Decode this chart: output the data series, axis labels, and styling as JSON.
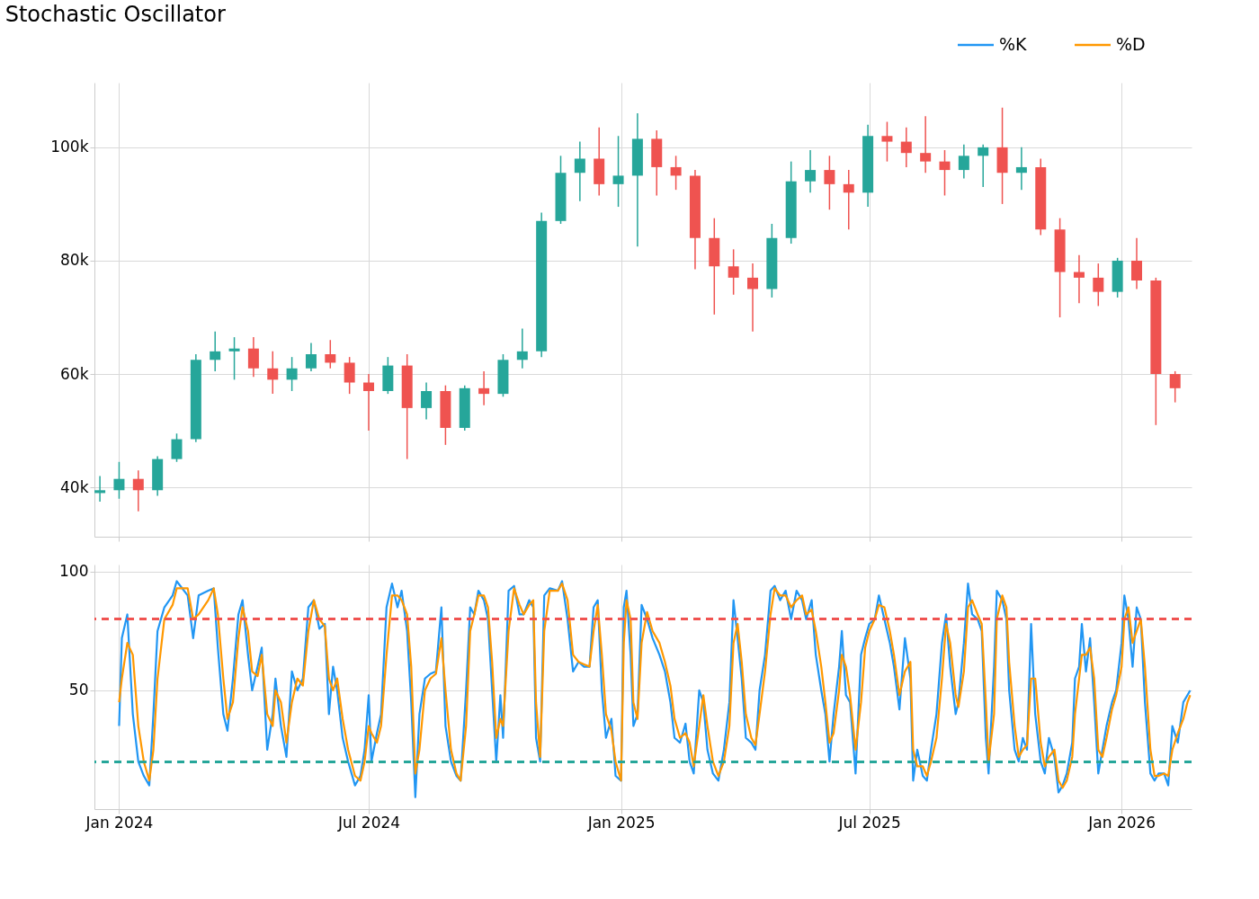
{
  "chart_data": [
    {
      "type": "candlestick",
      "title": "Stochastic Oscillator",
      "x": [
        "2023-12-18",
        "2024-01-01",
        "2024-01-15",
        "2024-01-29",
        "2024-02-12",
        "2024-02-26",
        "2024-03-11",
        "2024-03-25",
        "2024-04-08",
        "2024-04-22",
        "2024-05-06",
        "2024-05-20",
        "2024-06-03",
        "2024-06-17",
        "2024-07-01",
        "2024-07-15",
        "2024-07-29",
        "2024-08-12",
        "2024-08-26",
        "2024-09-09",
        "2024-09-23",
        "2024-10-07",
        "2024-10-21",
        "2024-11-04",
        "2024-11-18",
        "2024-12-02",
        "2024-12-16",
        "2024-12-30",
        "2025-01-13",
        "2025-01-27",
        "2025-02-10",
        "2025-02-24",
        "2025-03-10",
        "2025-03-24",
        "2025-04-07",
        "2025-04-21",
        "2025-05-05",
        "2025-05-19",
        "2025-06-02",
        "2025-06-16",
        "2025-06-30",
        "2025-07-14",
        "2025-07-28",
        "2025-08-11",
        "2025-08-25",
        "2025-09-08",
        "2025-09-22",
        "2025-10-06",
        "2025-10-20",
        "2025-11-03",
        "2025-11-17",
        "2025-12-01",
        "2025-12-15",
        "2025-12-29",
        "2026-01-12",
        "2026-01-26",
        "2026-02-09"
      ],
      "ohlc": [
        [
          39000,
          42000,
          37500,
          39500
        ],
        [
          39500,
          44500,
          38000,
          41500
        ],
        [
          41500,
          43000,
          35800,
          39500
        ],
        [
          39500,
          45500,
          38500,
          45000
        ],
        [
          45000,
          49500,
          44500,
          48500
        ],
        [
          48500,
          63500,
          48000,
          62500
        ],
        [
          62500,
          67500,
          60500,
          64000
        ],
        [
          64000,
          66500,
          59000,
          64500
        ],
        [
          64500,
          66500,
          59500,
          61000
        ],
        [
          61000,
          64000,
          56500,
          59000
        ],
        [
          59000,
          63000,
          57000,
          61000
        ],
        [
          61000,
          65500,
          60500,
          63500
        ],
        [
          63500,
          66000,
          61000,
          62000
        ],
        [
          62000,
          63000,
          56500,
          58500
        ],
        [
          58500,
          60000,
          50000,
          57000
        ],
        [
          57000,
          63000,
          56500,
          61500
        ],
        [
          61500,
          63500,
          45000,
          54000
        ],
        [
          54000,
          58500,
          52000,
          57000
        ],
        [
          57000,
          58000,
          47500,
          50500
        ],
        [
          50500,
          58000,
          50000,
          57500
        ],
        [
          57500,
          60500,
          54500,
          56500
        ],
        [
          56500,
          63500,
          56000,
          62500
        ],
        [
          62500,
          68000,
          61000,
          64000
        ],
        [
          64000,
          88500,
          63000,
          87000
        ],
        [
          87000,
          98500,
          86500,
          95500
        ],
        [
          95500,
          101000,
          90500,
          98000
        ],
        [
          98000,
          103500,
          91500,
          93500
        ],
        [
          93500,
          102000,
          89500,
          95000
        ],
        [
          95000,
          106000,
          82500,
          101500
        ],
        [
          101500,
          103000,
          91500,
          96500
        ],
        [
          96500,
          98500,
          92500,
          95000
        ],
        [
          95000,
          96000,
          78500,
          84000
        ],
        [
          84000,
          87500,
          70500,
          79000
        ],
        [
          79000,
          82000,
          74000,
          77000
        ],
        [
          77000,
          79500,
          67500,
          75000
        ],
        [
          75000,
          86500,
          73500,
          84000
        ],
        [
          84000,
          97500,
          83000,
          94000
        ],
        [
          94000,
          99500,
          92000,
          96000
        ],
        [
          96000,
          98500,
          89000,
          93500
        ],
        [
          93500,
          96000,
          85500,
          92000
        ],
        [
          92000,
          104000,
          89500,
          102000
        ],
        [
          102000,
          104500,
          97500,
          101000
        ],
        [
          101000,
          103500,
          96500,
          99000
        ],
        [
          99000,
          105500,
          95500,
          97500
        ],
        [
          97500,
          99500,
          91500,
          96000
        ],
        [
          96000,
          100500,
          94500,
          98500
        ],
        [
          98500,
          100500,
          93000,
          100000
        ],
        [
          100000,
          107000,
          90000,
          95500
        ],
        [
          95500,
          100000,
          92500,
          96500
        ],
        [
          96500,
          98000,
          84500,
          85500
        ],
        [
          85500,
          87500,
          70000,
          78000
        ],
        [
          78000,
          81000,
          72500,
          77000
        ],
        [
          77000,
          79500,
          72000,
          74500
        ],
        [
          74500,
          80500,
          73500,
          80000
        ],
        [
          80000,
          84000,
          75000,
          76500
        ],
        [
          76500,
          77000,
          51000,
          60000
        ],
        [
          60000,
          60500,
          55000,
          57500
        ]
      ],
      "colors": [
        "#26a69a",
        "#26a69a",
        "#ef5350",
        "#26a69a",
        "#26a69a",
        "#26a69a",
        "#26a69a",
        "#26a69a",
        "#ef5350",
        "#ef5350",
        "#26a69a",
        "#26a69a",
        "#ef5350",
        "#ef5350",
        "#ef5350",
        "#26a69a",
        "#ef5350",
        "#26a69a",
        "#ef5350",
        "#26a69a",
        "#ef5350",
        "#26a69a",
        "#26a69a",
        "#26a69a",
        "#26a69a",
        "#26a69a",
        "#ef5350",
        "#26a69a",
        "#26a69a",
        "#ef5350",
        "#ef5350",
        "#ef5350",
        "#ef5350",
        "#ef5350",
        "#ef5350",
        "#26a69a",
        "#26a69a",
        "#26a69a",
        "#ef5350",
        "#ef5350",
        "#26a69a",
        "#ef5350",
        "#ef5350",
        "#ef5350",
        "#ef5350",
        "#26a69a",
        "#26a69a",
        "#ef5350",
        "#26a69a",
        "#ef5350",
        "#ef5350",
        "#ef5350",
        "#ef5350",
        "#26a69a",
        "#ef5350",
        "#ef5350",
        "#ef5350"
      ],
      "xlim": [
        "2023-12-14",
        "2026-02-21"
      ],
      "xticks": [
        {
          "value": "2024-01-01",
          "label": null
        },
        {
          "value": "2024-07-01",
          "label": null
        },
        {
          "value": "2025-01-01",
          "label": null
        },
        {
          "value": "2025-07-01",
          "label": null
        },
        {
          "value": "2026-01-01",
          "label": null
        }
      ],
      "ylim": [
        31300,
        111400
      ],
      "yticks": [
        {
          "value": 40000,
          "label": "40k"
        },
        {
          "value": 60000,
          "label": "60k"
        },
        {
          "value": 80000,
          "label": "80k"
        },
        {
          "value": 100000,
          "label": "100k"
        }
      ],
      "grid": true,
      "tick_labels": "y"
    },
    {
      "type": "line",
      "x": [
        "2024-01-01",
        "2024-01-03",
        "2024-01-07",
        "2024-01-11",
        "2024-01-15",
        "2024-01-19",
        "2024-01-23",
        "2024-01-26",
        "2024-01-29",
        "2024-02-03",
        "2024-02-09",
        "2024-02-12",
        "2024-02-20",
        "2024-02-24",
        "2024-02-28",
        "2024-03-06",
        "2024-03-10",
        "2024-03-13",
        "2024-03-17",
        "2024-03-20",
        "2024-03-24",
        "2024-03-28",
        "2024-03-31",
        "2024-04-04",
        "2024-04-07",
        "2024-04-11",
        "2024-04-14",
        "2024-04-18",
        "2024-04-22",
        "2024-04-24",
        "2024-04-28",
        "2024-05-02",
        "2024-05-06",
        "2024-05-10",
        "2024-05-14",
        "2024-05-18",
        "2024-05-22",
        "2024-05-26",
        "2024-05-30",
        "2024-06-02",
        "2024-06-05",
        "2024-06-08",
        "2024-06-12",
        "2024-06-16",
        "2024-06-21",
        "2024-06-25",
        "2024-06-28",
        "2024-07-01",
        "2024-07-03",
        "2024-07-07",
        "2024-07-10",
        "2024-07-14",
        "2024-07-18",
        "2024-07-22",
        "2024-07-25",
        "2024-07-29",
        "2024-08-01",
        "2024-08-04",
        "2024-08-07",
        "2024-08-11",
        "2024-08-15",
        "2024-08-19",
        "2024-08-23",
        "2024-08-26",
        "2024-08-30",
        "2024-09-03",
        "2024-09-06",
        "2024-09-10",
        "2024-09-13",
        "2024-09-16",
        "2024-09-19",
        "2024-09-23",
        "2024-09-26",
        "2024-09-29",
        "2024-10-02",
        "2024-10-05",
        "2024-10-07",
        "2024-10-11",
        "2024-10-15",
        "2024-10-19",
        "2024-10-22",
        "2024-10-26",
        "2024-10-29",
        "2024-10-31",
        "2024-11-03",
        "2024-11-06",
        "2024-11-10",
        "2024-11-16",
        "2024-11-19",
        "2024-11-23",
        "2024-11-27",
        "2024-12-01",
        "2024-12-05",
        "2024-12-09",
        "2024-12-12",
        "2024-12-15",
        "2024-12-18",
        "2024-12-21",
        "2024-12-25",
        "2024-12-28",
        "2025-01-01",
        "2025-01-03",
        "2025-01-05",
        "2025-01-08",
        "2025-01-10",
        "2025-01-13",
        "2025-01-16",
        "2025-01-20",
        "2025-01-24",
        "2025-01-29",
        "2025-02-02",
        "2025-02-06",
        "2025-02-09",
        "2025-02-13",
        "2025-02-17",
        "2025-02-20",
        "2025-02-23",
        "2025-02-27",
        "2025-03-02",
        "2025-03-05",
        "2025-03-09",
        "2025-03-13",
        "2025-03-17",
        "2025-03-21",
        "2025-03-24",
        "2025-03-27",
        "2025-03-30",
        "2025-04-02",
        "2025-04-06",
        "2025-04-09",
        "2025-04-12",
        "2025-04-16",
        "2025-04-20",
        "2025-04-23",
        "2025-04-27",
        "2025-05-01",
        "2025-05-05",
        "2025-05-09",
        "2025-05-13",
        "2025-05-16",
        "2025-05-20",
        "2025-05-23",
        "2025-05-27",
        "2025-05-30",
        "2025-06-02",
        "2025-06-05",
        "2025-06-09",
        "2025-06-11",
        "2025-06-14",
        "2025-06-17",
        "2025-06-21",
        "2025-06-25",
        "2025-06-28",
        "2025-07-01",
        "2025-07-05",
        "2025-07-08",
        "2025-07-12",
        "2025-07-16",
        "2025-07-19",
        "2025-07-23",
        "2025-07-27",
        "2025-07-31",
        "2025-08-02",
        "2025-08-05",
        "2025-08-09",
        "2025-08-12",
        "2025-08-15",
        "2025-08-19",
        "2025-08-23",
        "2025-08-26",
        "2025-08-29",
        "2025-09-02",
        "2025-09-04",
        "2025-09-08",
        "2025-09-11",
        "2025-09-14",
        "2025-09-18",
        "2025-09-21",
        "2025-09-24",
        "2025-09-26",
        "2025-09-30",
        "2025-10-02",
        "2025-10-06",
        "2025-10-09",
        "2025-10-11",
        "2025-10-15",
        "2025-10-18",
        "2025-10-21",
        "2025-10-24",
        "2025-10-27",
        "2025-10-30",
        "2025-11-03",
        "2025-11-06",
        "2025-11-09",
        "2025-11-13",
        "2025-11-16",
        "2025-11-19",
        "2025-11-22",
        "2025-11-26",
        "2025-11-28",
        "2025-12-01",
        "2025-12-03",
        "2025-12-06",
        "2025-12-09",
        "2025-12-12",
        "2025-12-15",
        "2025-12-18",
        "2025-12-21",
        "2025-12-25",
        "2025-12-28",
        "2026-01-01",
        "2026-01-03",
        "2026-01-06",
        "2026-01-09",
        "2026-01-12",
        "2026-01-15",
        "2026-01-18",
        "2026-01-22",
        "2026-01-25",
        "2026-01-28",
        "2026-02-01",
        "2026-02-04",
        "2026-02-07",
        "2026-02-11",
        "2026-02-15",
        "2026-02-18",
        "2026-02-20"
      ],
      "series": [
        {
          "name": "%K",
          "color": "#2196f3",
          "values": [
            35,
            72,
            82,
            40,
            20,
            14,
            10,
            40,
            75,
            85,
            90,
            96,
            90,
            72,
            90,
            92,
            93,
            68,
            40,
            33,
            55,
            82,
            88,
            65,
            50,
            60,
            68,
            25,
            40,
            55,
            35,
            22,
            58,
            50,
            55,
            85,
            88,
            76,
            78,
            40,
            60,
            50,
            30,
            20,
            10,
            14,
            25,
            48,
            20,
            32,
            40,
            85,
            95,
            85,
            92,
            75,
            45,
            5,
            40,
            55,
            57,
            58,
            85,
            35,
            20,
            14,
            12,
            50,
            85,
            82,
            92,
            88,
            80,
            50,
            20,
            48,
            30,
            92,
            94,
            82,
            82,
            88,
            85,
            30,
            20,
            90,
            93,
            92,
            96,
            80,
            58,
            62,
            60,
            60,
            85,
            88,
            50,
            30,
            38,
            14,
            12,
            85,
            92,
            65,
            35,
            40,
            86,
            80,
            72,
            65,
            58,
            45,
            30,
            28,
            36,
            20,
            15,
            50,
            45,
            25,
            15,
            12,
            25,
            45,
            88,
            72,
            55,
            30,
            28,
            25,
            50,
            65,
            92,
            94,
            88,
            92,
            80,
            92,
            88,
            80,
            88,
            65,
            50,
            40,
            20,
            40,
            60,
            75,
            48,
            45,
            15,
            65,
            72,
            78,
            80,
            90,
            80,
            70,
            60,
            42,
            72,
            55,
            12,
            25,
            14,
            12,
            25,
            40,
            70,
            82,
            60,
            40,
            45,
            70,
            95,
            82,
            80,
            75,
            30,
            15,
            60,
            92,
            88,
            80,
            50,
            25,
            20,
            30,
            25,
            78,
            40,
            20,
            15,
            30,
            22,
            7,
            10,
            15,
            28,
            55,
            60,
            78,
            58,
            72,
            45,
            15,
            25,
            35,
            45,
            50,
            70,
            90,
            80,
            60,
            85,
            80,
            45,
            15,
            12,
            15,
            15,
            10,
            35,
            28,
            45,
            48,
            50
          ]
        },
        {
          "name": "%D",
          "color": "#ff9800",
          "values": [
            45,
            55,
            70,
            65,
            35,
            20,
            12,
            25,
            55,
            80,
            86,
            93,
            93,
            80,
            82,
            88,
            93,
            82,
            55,
            38,
            45,
            72,
            85,
            75,
            58,
            56,
            65,
            40,
            35,
            50,
            45,
            28,
            45,
            55,
            52,
            75,
            88,
            80,
            77,
            55,
            50,
            55,
            38,
            25,
            14,
            12,
            20,
            35,
            32,
            28,
            35,
            65,
            90,
            90,
            88,
            82,
            60,
            15,
            25,
            50,
            55,
            57,
            72,
            50,
            25,
            15,
            12,
            35,
            75,
            82,
            90,
            90,
            85,
            62,
            30,
            38,
            35,
            75,
            93,
            86,
            82,
            86,
            88,
            45,
            22,
            75,
            92,
            92,
            95,
            88,
            65,
            62,
            61,
            60,
            75,
            86,
            65,
            40,
            33,
            20,
            12,
            70,
            88,
            80,
            45,
            38,
            70,
            83,
            75,
            70,
            62,
            52,
            38,
            30,
            32,
            28,
            18,
            35,
            48,
            35,
            20,
            14,
            20,
            35,
            70,
            78,
            62,
            40,
            30,
            27,
            40,
            58,
            82,
            93,
            90,
            90,
            85,
            88,
            90,
            82,
            84,
            75,
            60,
            45,
            28,
            32,
            50,
            65,
            60,
            48,
            25,
            45,
            68,
            75,
            80,
            86,
            85,
            75,
            65,
            48,
            58,
            62,
            25,
            18,
            18,
            14,
            20,
            30,
            55,
            78,
            70,
            48,
            43,
            58,
            85,
            88,
            82,
            78,
            45,
            20,
            40,
            80,
            90,
            85,
            62,
            35,
            22,
            25,
            27,
            55,
            55,
            28,
            18,
            22,
            25,
            12,
            9,
            12,
            22,
            40,
            55,
            65,
            65,
            68,
            55,
            25,
            22,
            30,
            42,
            48,
            60,
            80,
            85,
            70,
            75,
            80,
            60,
            25,
            14,
            14,
            15,
            14,
            25,
            32,
            38,
            45,
            48
          ]
        }
      ],
      "xlim": [
        "2023-12-14",
        "2026-02-21"
      ],
      "xticks": [
        {
          "value": "2024-01-01",
          "label": "Jan 2024"
        },
        {
          "value": "2024-07-01",
          "label": "Jul 2024"
        },
        {
          "value": "2025-01-01",
          "label": "Jan 2025"
        },
        {
          "value": "2025-07-01",
          "label": "Jul 2025"
        },
        {
          "value": "2026-01-01",
          "label": "Jan 2026"
        }
      ],
      "ylim": [
        0,
        103
      ],
      "yticks": [
        50,
        100
      ],
      "ref_lines": [
        {
          "axis": "y",
          "value": 80,
          "color": "#ef5350",
          "line_style": "dashed"
        },
        {
          "axis": "y",
          "value": 20,
          "color": "#26a69a",
          "line_style": "dashed"
        }
      ],
      "grid": true,
      "legend": "top right",
      "line_style": "solid"
    }
  ]
}
